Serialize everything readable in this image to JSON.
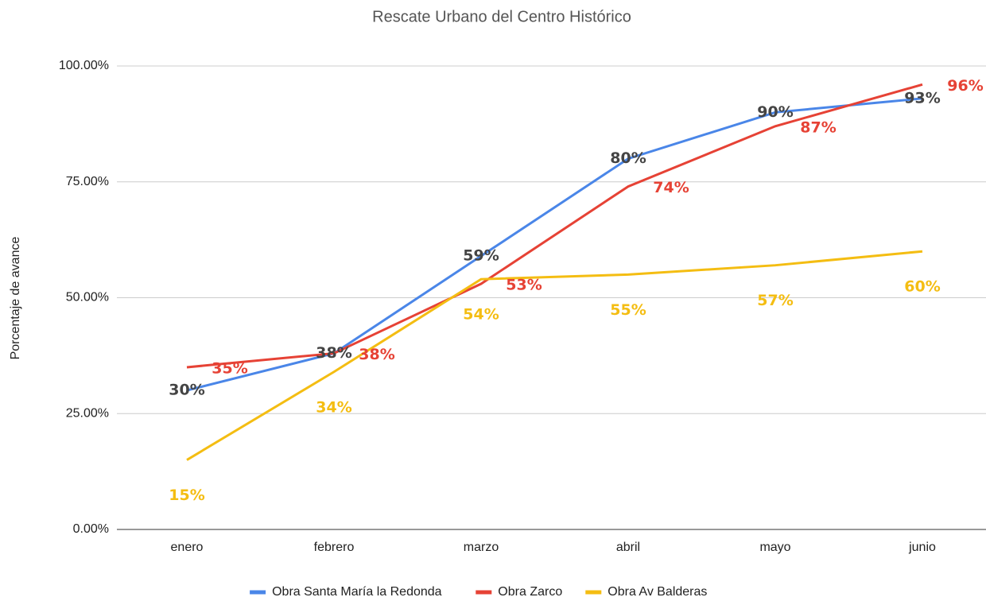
{
  "chart_data": {
    "type": "line",
    "title": "Rescate Urbano del Centro Histórico",
    "y_label": "Porcentaje de avance",
    "categories": [
      "enero",
      "febrero",
      "marzo",
      "abril",
      "mayo",
      "junio"
    ],
    "series": [
      {
        "name": "Obra Santa María la Redonda",
        "color": "#4a86e8",
        "label_color": "#444444",
        "values": [
          30,
          38,
          59,
          80,
          90,
          93
        ],
        "value_labels": [
          "30%",
          "38%",
          "59%",
          "80%",
          "90%",
          "93%"
        ]
      },
      {
        "name": "Obra Zarco",
        "color": "#e64235",
        "label_color": "#e64235",
        "values": [
          35,
          38,
          53,
          74,
          87,
          96
        ],
        "value_labels": [
          "35%",
          "38%",
          "53%",
          "74%",
          "87%",
          "96%"
        ]
      },
      {
        "name": "Obra Av Balderas",
        "color": "#f4bd12",
        "label_color": "#f4bd12",
        "values": [
          15,
          34,
          54,
          55,
          57,
          60
        ],
        "value_labels": [
          "15%",
          "34%",
          "54%",
          "55%",
          "57%",
          "60%"
        ]
      }
    ],
    "ylim": [
      0,
      100
    ],
    "yticks": [
      {
        "value": 0,
        "label": "0.00%"
      },
      {
        "value": 25,
        "label": "25.00%"
      },
      {
        "value": 50,
        "label": "50.00%"
      },
      {
        "value": 75,
        "label": "75.00%"
      },
      {
        "value": 100,
        "label": "100.00%"
      }
    ],
    "grid": true,
    "legend": "bottom"
  }
}
